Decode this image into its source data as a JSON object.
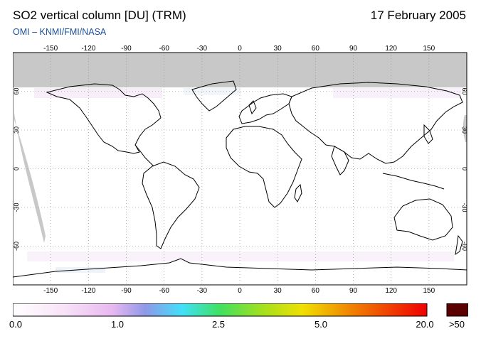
{
  "header": {
    "title": "SO2 vertical column [DU] (TRM)",
    "date": "17 February 2005",
    "credit": "OMI  –  KNMI/FMI/NASA"
  },
  "map": {
    "projection": "equirectangular",
    "lon_ticks": [
      "-150",
      "-120",
      "-90",
      "-60",
      "-30",
      "0",
      "30",
      "60",
      "90",
      "120",
      "150"
    ],
    "lat_ticks": [
      "60",
      "30",
      "0",
      "-30",
      "-60"
    ],
    "lon_tick_values": [
      -150,
      -120,
      -90,
      -60,
      -30,
      0,
      30,
      60,
      90,
      120,
      150
    ],
    "lat_tick_values": [
      60,
      30,
      0,
      -30,
      -60
    ],
    "lon_range": [
      -180,
      180
    ],
    "lat_range": [
      -90,
      90
    ],
    "no_data_color": "#c8c8c8",
    "background_color": "#ffffff",
    "coastline_color": "#000000",
    "grid": "dotted"
  },
  "colorbar": {
    "labels": [
      "0.0",
      "1.0",
      "2.5",
      "5.0",
      "20.0"
    ],
    "over_label": ">50",
    "colors": [
      "#ffffff",
      "#f8e4f8",
      "#e8b8f0",
      "#b0a0e8",
      "#4fd8f8",
      "#40e060",
      "#a0e020",
      "#f0e000",
      "#f08000",
      "#f00000"
    ],
    "over_color": "#5a0000"
  }
}
